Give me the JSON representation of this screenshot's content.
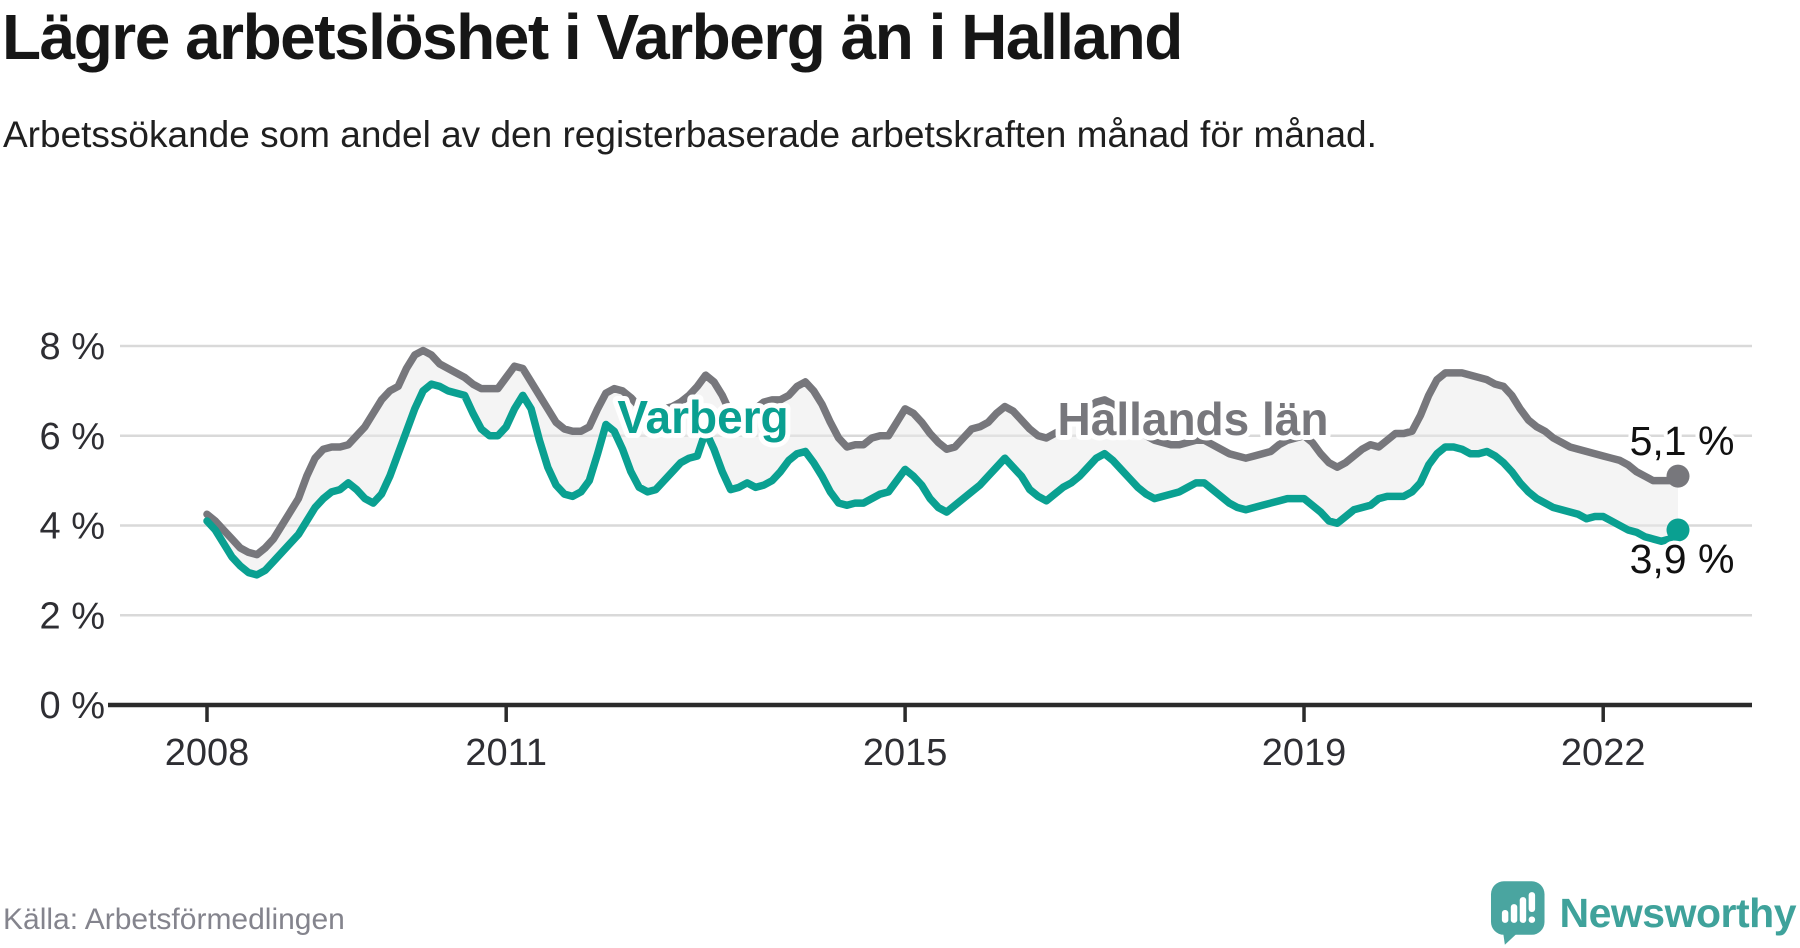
{
  "header": {
    "title": "Lägre arbetslöshet i Varberg än i Halland",
    "subtitle": "Arbetssökande som andel av den registerbaserade arbetskraften månad för månad."
  },
  "footer": {
    "source": "Källa: Arbetsförmedlingen",
    "logo_text": "Newsworthy"
  },
  "colors": {
    "varberg": "#0aa091",
    "halland": "#77777c",
    "area_fill": "#e9e9e9",
    "grid": "#d9d9d9",
    "axis": "#2b2b2b",
    "tick_text": "#2e2e33",
    "end_label_text": "#111111",
    "logo_bubble": "#4aa5a0",
    "logo_text": "#3fa29b"
  },
  "chart_data": {
    "type": "line",
    "unit": "%",
    "frequency": "monthly",
    "x_start": "2008-01",
    "x_end": "2022-10",
    "ylim": [
      0,
      8.6
    ],
    "grid": true,
    "y_ticks": [
      {
        "label": "0 %",
        "value": 0
      },
      {
        "label": "2 %",
        "value": 2
      },
      {
        "label": "4 %",
        "value": 4
      },
      {
        "label": "6 %",
        "value": 6
      },
      {
        "label": "8 %",
        "value": 8
      }
    ],
    "x_ticks": [
      {
        "label": "2008",
        "index": 0
      },
      {
        "label": "2011",
        "index": 36
      },
      {
        "label": "2015",
        "index": 84
      },
      {
        "label": "2019",
        "index": 132
      },
      {
        "label": "2022",
        "index": 168
      }
    ],
    "series": [
      {
        "id": "halland",
        "name": "Hallands län",
        "color": "#77777c",
        "end_label": "5,1 %",
        "end_label_position": "above",
        "end_value": 5.1,
        "values": [
          4.25,
          4.1,
          3.9,
          3.7,
          3.5,
          3.4,
          3.35,
          3.5,
          3.7,
          4.0,
          4.3,
          4.6,
          5.1,
          5.5,
          5.7,
          5.75,
          5.75,
          5.8,
          6.0,
          6.2,
          6.5,
          6.8,
          7.0,
          7.1,
          7.5,
          7.8,
          7.9,
          7.8,
          7.6,
          7.5,
          7.4,
          7.3,
          7.15,
          7.05,
          7.05,
          7.05,
          7.3,
          7.55,
          7.5,
          7.2,
          6.9,
          6.6,
          6.3,
          6.15,
          6.1,
          6.1,
          6.2,
          6.6,
          6.95,
          7.05,
          7.0,
          6.85,
          6.65,
          6.5,
          6.55,
          6.6,
          6.65,
          6.75,
          6.9,
          7.1,
          7.35,
          7.2,
          6.9,
          6.5,
          6.35,
          6.5,
          6.6,
          6.75,
          6.8,
          6.8,
          6.9,
          7.1,
          7.2,
          7.0,
          6.7,
          6.3,
          5.95,
          5.75,
          5.8,
          5.8,
          5.95,
          6.0,
          6.0,
          6.3,
          6.6,
          6.5,
          6.3,
          6.05,
          5.85,
          5.7,
          5.75,
          5.95,
          6.15,
          6.2,
          6.3,
          6.5,
          6.65,
          6.55,
          6.35,
          6.15,
          6.0,
          5.95,
          6.05,
          6.15,
          6.3,
          6.45,
          6.6,
          6.75,
          6.8,
          6.7,
          6.5,
          6.3,
          6.15,
          6.0,
          5.9,
          5.85,
          5.8,
          5.8,
          5.85,
          5.9,
          5.9,
          5.8,
          5.7,
          5.6,
          5.55,
          5.5,
          5.55,
          5.6,
          5.65,
          5.8,
          5.9,
          5.95,
          6.0,
          5.85,
          5.6,
          5.4,
          5.3,
          5.4,
          5.55,
          5.7,
          5.8,
          5.75,
          5.9,
          6.05,
          6.05,
          6.1,
          6.45,
          6.9,
          7.25,
          7.4,
          7.4,
          7.4,
          7.35,
          7.3,
          7.25,
          7.15,
          7.1,
          6.9,
          6.6,
          6.35,
          6.2,
          6.1,
          5.95,
          5.85,
          5.75,
          5.7,
          5.65,
          5.6,
          5.55,
          5.5,
          5.45,
          5.35,
          5.2,
          5.1,
          5.0,
          5.0,
          5.0,
          5.1
        ]
      },
      {
        "id": "varberg",
        "name": "Varberg",
        "color": "#0aa091",
        "end_label": "3,9 %",
        "end_label_position": "below",
        "end_value": 3.9,
        "values": [
          4.1,
          3.9,
          3.6,
          3.3,
          3.1,
          2.95,
          2.9,
          3.0,
          3.2,
          3.4,
          3.6,
          3.8,
          4.1,
          4.4,
          4.6,
          4.75,
          4.8,
          4.95,
          4.8,
          4.6,
          4.5,
          4.7,
          5.1,
          5.6,
          6.1,
          6.6,
          7.0,
          7.15,
          7.1,
          7.0,
          6.95,
          6.9,
          6.5,
          6.15,
          6.0,
          6.0,
          6.2,
          6.6,
          6.9,
          6.6,
          5.9,
          5.3,
          4.9,
          4.7,
          4.65,
          4.75,
          5.0,
          5.6,
          6.25,
          6.1,
          5.7,
          5.2,
          4.85,
          4.75,
          4.8,
          5.0,
          5.2,
          5.4,
          5.5,
          5.55,
          6.1,
          5.7,
          5.2,
          4.8,
          4.85,
          4.95,
          4.85,
          4.9,
          5.0,
          5.2,
          5.45,
          5.6,
          5.65,
          5.4,
          5.1,
          4.75,
          4.5,
          4.45,
          4.5,
          4.5,
          4.6,
          4.7,
          4.75,
          5.0,
          5.25,
          5.1,
          4.9,
          4.6,
          4.4,
          4.3,
          4.45,
          4.6,
          4.75,
          4.9,
          5.1,
          5.3,
          5.5,
          5.3,
          5.1,
          4.8,
          4.65,
          4.55,
          4.7,
          4.85,
          4.95,
          5.1,
          5.3,
          5.5,
          5.6,
          5.45,
          5.25,
          5.05,
          4.85,
          4.7,
          4.6,
          4.65,
          4.7,
          4.75,
          4.85,
          4.95,
          4.95,
          4.8,
          4.65,
          4.5,
          4.4,
          4.35,
          4.4,
          4.45,
          4.5,
          4.55,
          4.6,
          4.6,
          4.6,
          4.45,
          4.3,
          4.1,
          4.05,
          4.2,
          4.35,
          4.4,
          4.45,
          4.6,
          4.65,
          4.65,
          4.65,
          4.75,
          4.95,
          5.35,
          5.6,
          5.75,
          5.75,
          5.7,
          5.6,
          5.6,
          5.65,
          5.55,
          5.4,
          5.2,
          4.95,
          4.75,
          4.6,
          4.5,
          4.4,
          4.35,
          4.3,
          4.25,
          4.15,
          4.2,
          4.2,
          4.1,
          4.0,
          3.9,
          3.85,
          3.75,
          3.7,
          3.65,
          3.7,
          3.9
        ]
      }
    ],
    "series_labels": [
      {
        "series": 1,
        "text": "Varberg",
        "x": 703,
        "y": 433
      },
      {
        "series": 0,
        "text": "Hallands län",
        "x": 1193,
        "y": 435
      }
    ]
  }
}
